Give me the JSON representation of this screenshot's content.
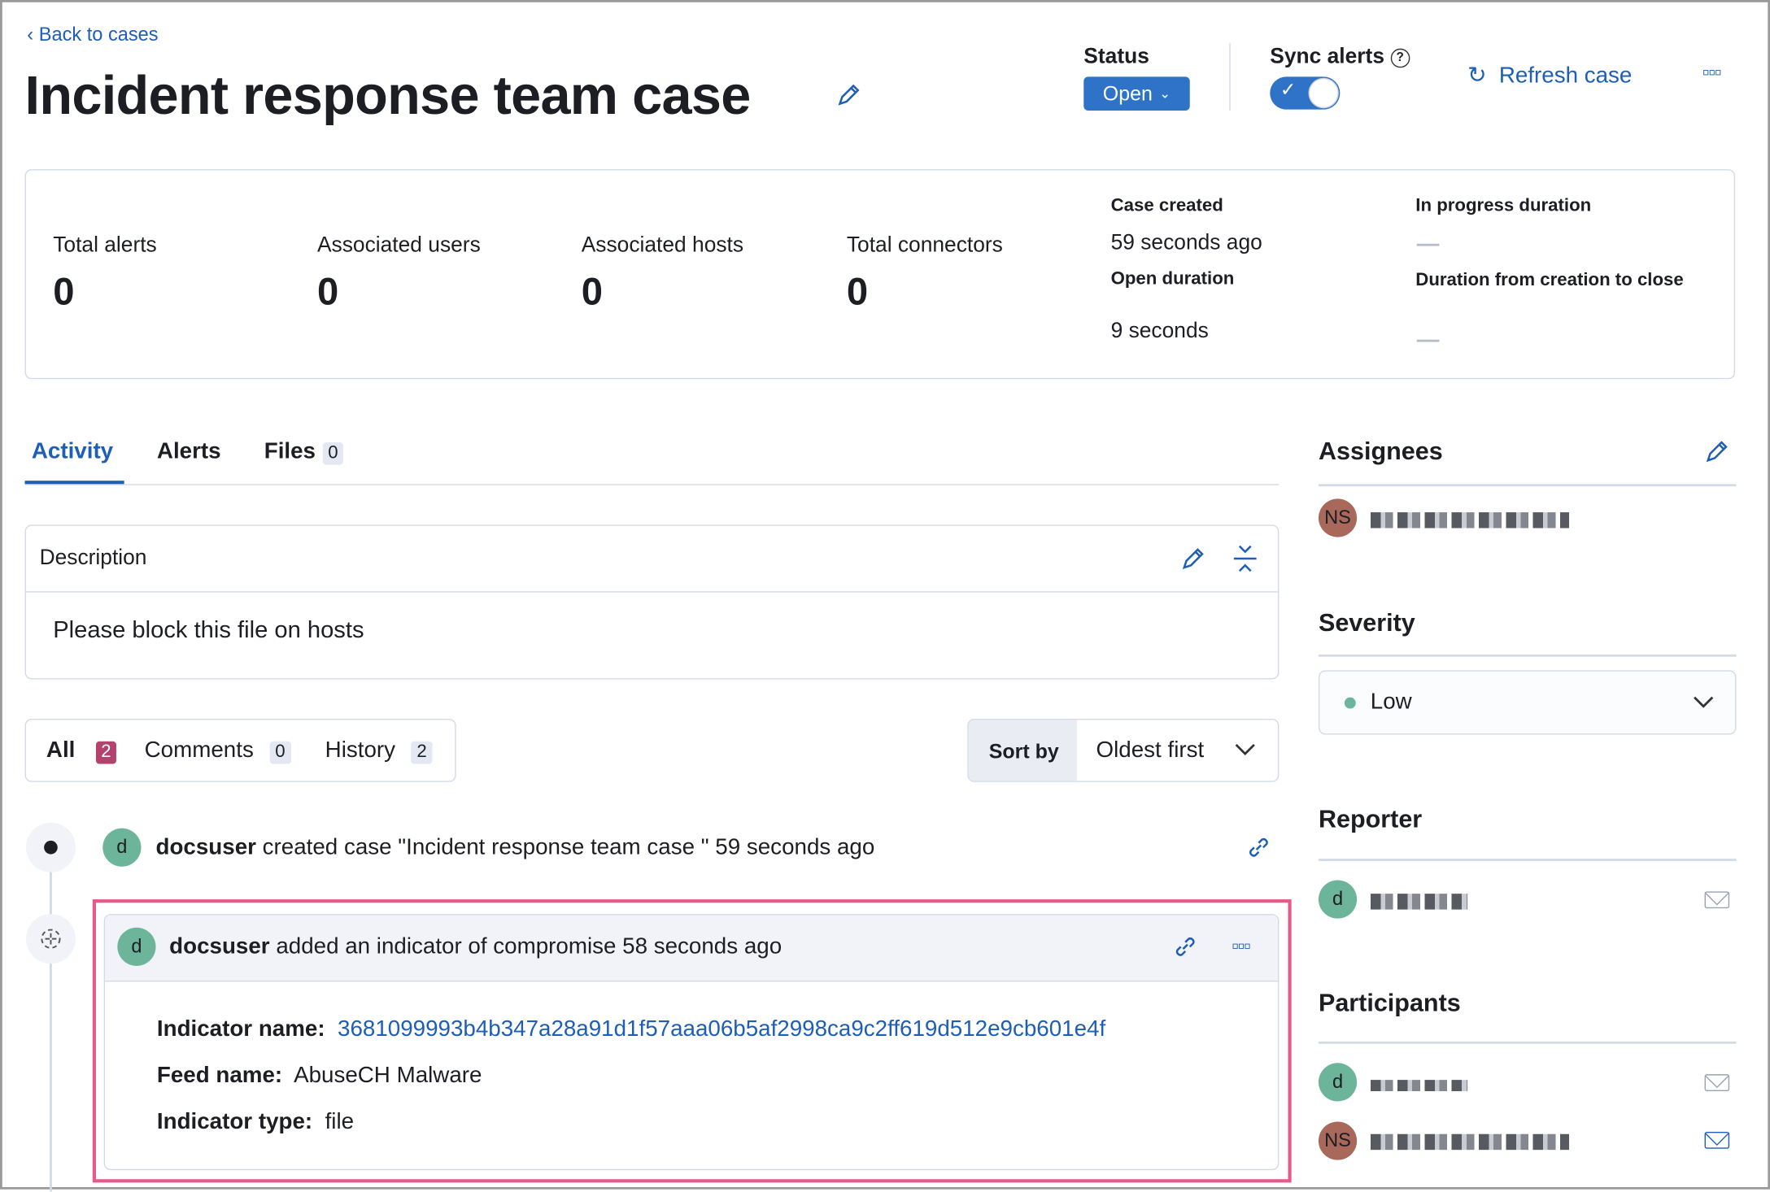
{
  "header": {
    "back_link": "Back to cases",
    "title": "Incident response team case",
    "status_label": "Status",
    "status_value": "Open",
    "sync_alerts_label": "Sync alerts",
    "sync_alerts_enabled": true,
    "refresh_label": "Refresh case"
  },
  "stats": {
    "total_alerts_label": "Total alerts",
    "total_alerts": "0",
    "users_label": "Associated users",
    "users": "0",
    "hosts_label": "Associated hosts",
    "hosts": "0",
    "connectors_label": "Total connectors",
    "connectors": "0",
    "case_created_label": "Case created",
    "case_created": "59 seconds ago",
    "open_duration_label": "Open duration",
    "open_duration": "9 seconds",
    "in_progress_label": "In progress duration",
    "creation_close_label": "Duration from creation to close"
  },
  "tabs": [
    {
      "label": "Activity",
      "active": true
    },
    {
      "label": "Alerts"
    },
    {
      "label": "Files",
      "count": "0"
    }
  ],
  "description": {
    "label": "Description",
    "text": "Please block this file on hosts"
  },
  "filters": [
    {
      "label": "All",
      "count": "2"
    },
    {
      "label": "Comments",
      "count": "0"
    },
    {
      "label": "History",
      "count": "2"
    }
  ],
  "sort": {
    "label": "Sort by",
    "value": "Oldest first"
  },
  "activity": [
    {
      "avatar": "d",
      "user": "docsuser",
      "text": "created case \"Incident response team case \" 59 seconds ago"
    },
    {
      "avatar": "d",
      "user": "docsuser",
      "text": "added an indicator of compromise 58 seconds ago",
      "details": {
        "indicator_name_label": "Indicator name:",
        "indicator_name": "3681099993b4b347a28a91d1f57aaa06b5af2998ca9c2ff619d512e9cb601e4f",
        "feed_name_label": "Feed name:",
        "feed_name": "AbuseCH Malware",
        "indicator_type_label": "Indicator type:",
        "indicator_type": "file"
      }
    }
  ],
  "sidebar": {
    "assignees_label": "Assignees",
    "assignee_initials": "NS",
    "severity_label": "Severity",
    "severity_value": "Low",
    "severity_color": "#6db59a",
    "reporter_label": "Reporter",
    "reporter_initials": "d",
    "participants_label": "Participants",
    "participants": [
      {
        "initials": "d"
      },
      {
        "initials": "NS"
      }
    ]
  },
  "colors": {
    "accent": "#1e5eb5",
    "primary_button": "#2f73c8",
    "highlight_border": "#e8588a",
    "all_badge": "#b3426c"
  }
}
